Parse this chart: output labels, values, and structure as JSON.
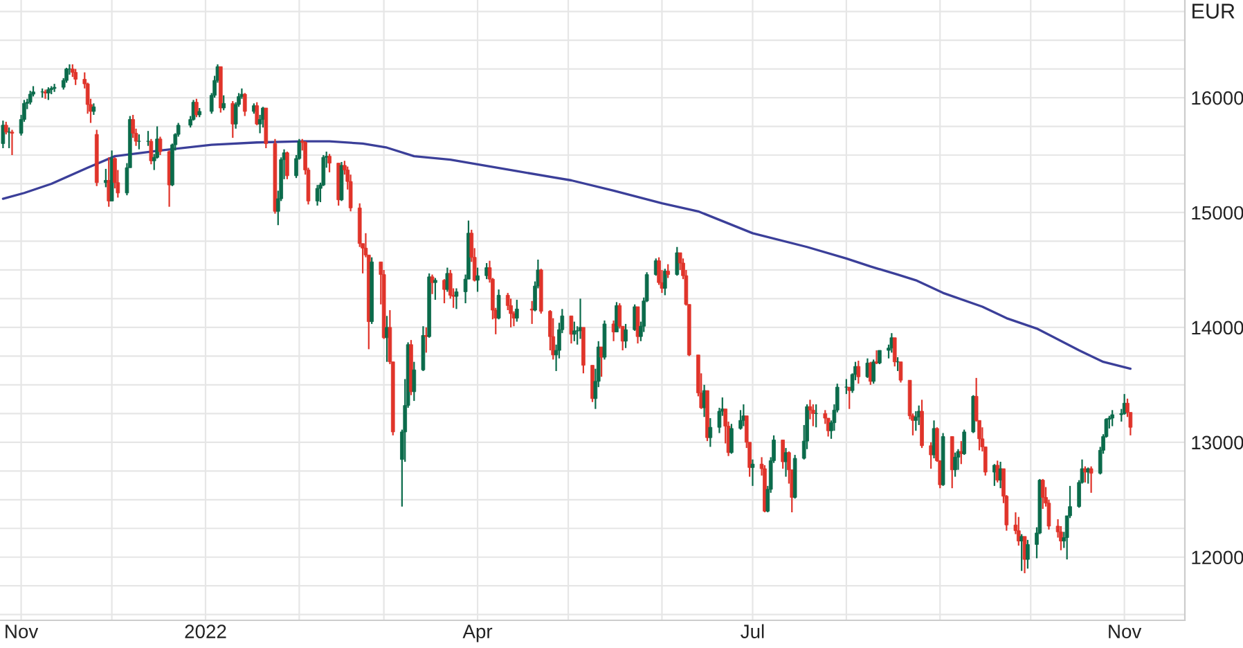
{
  "chart_data": {
    "type": "candlestick",
    "ylabel": "EUR",
    "x": [
      "2021-10-26",
      "2021-10-27",
      "2021-10-28",
      "2021-10-29",
      "2021-11-01",
      "2021-11-02",
      "2021-11-03",
      "2021-11-04",
      "2021-11-05",
      "2021-11-08",
      "2021-11-09",
      "2021-11-10",
      "2021-11-11",
      "2021-11-12",
      "2021-11-15",
      "2021-11-16",
      "2021-11-17",
      "2021-11-18",
      "2021-11-19",
      "2021-11-22",
      "2021-11-23",
      "2021-11-24",
      "2021-11-25",
      "2021-11-26",
      "2021-11-29",
      "2021-11-30",
      "2021-12-01",
      "2021-12-02",
      "2021-12-03",
      "2021-12-06",
      "2021-12-07",
      "2021-12-08",
      "2021-12-09",
      "2021-12-10",
      "2021-12-13",
      "2021-12-14",
      "2021-12-15",
      "2021-12-16",
      "2021-12-17",
      "2021-12-20",
      "2021-12-21",
      "2021-12-22",
      "2021-12-23",
      "2021-12-27",
      "2021-12-28",
      "2021-12-29",
      "2021-12-30",
      "2022-01-03",
      "2022-01-04",
      "2022-01-05",
      "2022-01-06",
      "2022-01-07",
      "2022-01-10",
      "2022-01-11",
      "2022-01-12",
      "2022-01-13",
      "2022-01-14",
      "2022-01-17",
      "2022-01-18",
      "2022-01-19",
      "2022-01-20",
      "2022-01-21",
      "2022-01-24",
      "2022-01-25",
      "2022-01-26",
      "2022-01-27",
      "2022-01-28",
      "2022-01-31",
      "2022-02-01",
      "2022-02-02",
      "2022-02-03",
      "2022-02-04",
      "2022-02-07",
      "2022-02-08",
      "2022-02-09",
      "2022-02-10",
      "2022-02-11",
      "2022-02-14",
      "2022-02-15",
      "2022-02-16",
      "2022-02-17",
      "2022-02-18",
      "2022-02-21",
      "2022-02-22",
      "2022-02-23",
      "2022-02-24",
      "2022-02-25",
      "2022-02-28",
      "2022-03-01",
      "2022-03-02",
      "2022-03-03",
      "2022-03-04",
      "2022-03-07",
      "2022-03-08",
      "2022-03-09",
      "2022-03-10",
      "2022-03-11",
      "2022-03-14",
      "2022-03-15",
      "2022-03-16",
      "2022-03-17",
      "2022-03-18",
      "2022-03-21",
      "2022-03-22",
      "2022-03-23",
      "2022-03-24",
      "2022-03-25",
      "2022-03-28",
      "2022-03-29",
      "2022-03-30",
      "2022-03-31",
      "2022-04-01",
      "2022-04-04",
      "2022-04-05",
      "2022-04-06",
      "2022-04-07",
      "2022-04-08",
      "2022-04-11",
      "2022-04-12",
      "2022-04-13",
      "2022-04-14",
      "2022-04-19",
      "2022-04-20",
      "2022-04-21",
      "2022-04-22",
      "2022-04-25",
      "2022-04-26",
      "2022-04-27",
      "2022-04-28",
      "2022-04-29",
      "2022-05-02",
      "2022-05-03",
      "2022-05-04",
      "2022-05-05",
      "2022-05-06",
      "2022-05-09",
      "2022-05-10",
      "2022-05-11",
      "2022-05-12",
      "2022-05-13",
      "2022-05-16",
      "2022-05-17",
      "2022-05-18",
      "2022-05-19",
      "2022-05-20",
      "2022-05-23",
      "2022-05-24",
      "2022-05-25",
      "2022-05-26",
      "2022-05-27",
      "2022-05-30",
      "2022-05-31",
      "2022-06-01",
      "2022-06-02",
      "2022-06-03",
      "2022-06-06",
      "2022-06-07",
      "2022-06-08",
      "2022-06-09",
      "2022-06-10",
      "2022-06-13",
      "2022-06-14",
      "2022-06-15",
      "2022-06-16",
      "2022-06-17",
      "2022-06-20",
      "2022-06-21",
      "2022-06-22",
      "2022-06-23",
      "2022-06-24",
      "2022-06-27",
      "2022-06-28",
      "2022-06-29",
      "2022-06-30",
      "2022-07-01",
      "2022-07-04",
      "2022-07-05",
      "2022-07-06",
      "2022-07-07",
      "2022-07-08",
      "2022-07-11",
      "2022-07-12",
      "2022-07-13",
      "2022-07-14",
      "2022-07-15",
      "2022-07-18",
      "2022-07-19",
      "2022-07-20",
      "2022-07-21",
      "2022-07-22",
      "2022-07-25",
      "2022-07-26",
      "2022-07-27",
      "2022-07-28",
      "2022-07-29",
      "2022-08-01",
      "2022-08-02",
      "2022-08-03",
      "2022-08-04",
      "2022-08-05",
      "2022-08-08",
      "2022-08-09",
      "2022-08-10",
      "2022-08-11",
      "2022-08-12",
      "2022-08-15",
      "2022-08-16",
      "2022-08-17",
      "2022-08-18",
      "2022-08-19",
      "2022-08-22",
      "2022-08-23",
      "2022-08-24",
      "2022-08-25",
      "2022-08-26",
      "2022-08-29",
      "2022-08-30",
      "2022-08-31",
      "2022-09-01",
      "2022-09-02",
      "2022-09-05",
      "2022-09-06",
      "2022-09-07",
      "2022-09-08",
      "2022-09-09",
      "2022-09-12",
      "2022-09-13",
      "2022-09-14",
      "2022-09-15",
      "2022-09-16",
      "2022-09-19",
      "2022-09-20",
      "2022-09-21",
      "2022-09-22",
      "2022-09-23",
      "2022-09-26",
      "2022-09-27",
      "2022-09-28",
      "2022-09-29",
      "2022-09-30",
      "2022-10-03",
      "2022-10-04",
      "2022-10-05",
      "2022-10-06",
      "2022-10-07",
      "2022-10-10",
      "2022-10-11",
      "2022-10-12",
      "2022-10-13",
      "2022-10-14",
      "2022-10-17",
      "2022-10-18",
      "2022-10-19",
      "2022-10-20",
      "2022-10-21",
      "2022-10-24",
      "2022-10-25",
      "2022-10-26",
      "2022-10-27",
      "2022-10-28",
      "2022-10-31",
      "2022-11-01",
      "2022-11-02",
      "2022-11-03"
    ],
    "ohlc": [
      [
        15600,
        15800,
        15560,
        15760
      ],
      [
        15760,
        15790,
        15680,
        15700
      ],
      [
        15700,
        15740,
        15560,
        15700
      ],
      [
        15700,
        15720,
        15500,
        15690
      ],
      [
        15690,
        15850,
        15670,
        15810
      ],
      [
        15810,
        15980,
        15790,
        15950
      ],
      [
        15950,
        15990,
        15900,
        15960
      ],
      [
        15960,
        16060,
        15940,
        16030
      ],
      [
        16030,
        16100,
        16010,
        16050
      ],
      [
        16050,
        16080,
        16000,
        16050
      ],
      [
        16050,
        16070,
        15990,
        16040
      ],
      [
        16040,
        16090,
        15980,
        16070
      ],
      [
        16070,
        16100,
        16030,
        16080
      ],
      [
        16080,
        16120,
        16050,
        16090
      ],
      [
        16090,
        16170,
        16070,
        16150
      ],
      [
        16150,
        16260,
        16130,
        16250
      ],
      [
        16250,
        16290,
        16200,
        16250
      ],
      [
        16250,
        16290,
        16180,
        16220
      ],
      [
        16220,
        16250,
        16110,
        16160
      ],
      [
        16160,
        16220,
        16080,
        16120
      ],
      [
        16120,
        16130,
        15860,
        15940
      ],
      [
        15940,
        15990,
        15780,
        15880
      ],
      [
        15880,
        15950,
        15850,
        15920
      ],
      [
        15680,
        15720,
        15230,
        15260
      ],
      [
        15260,
        15380,
        15220,
        15280
      ],
      [
        15280,
        15480,
        15050,
        15100
      ],
      [
        15100,
        15540,
        15100,
        15470
      ],
      [
        15470,
        15480,
        15210,
        15260
      ],
      [
        15260,
        15370,
        15130,
        15170
      ],
      [
        15170,
        15430,
        15150,
        15390
      ],
      [
        15390,
        15840,
        15390,
        15810
      ],
      [
        15810,
        15850,
        15650,
        15690
      ],
      [
        15690,
        15730,
        15580,
        15620
      ],
      [
        15620,
        15680,
        15550,
        15620
      ],
      [
        15620,
        15710,
        15580,
        15620
      ],
      [
        15620,
        15640,
        15420,
        15450
      ],
      [
        15450,
        15510,
        15370,
        15480
      ],
      [
        15480,
        15750,
        15470,
        15640
      ],
      [
        15640,
        15660,
        15500,
        15530
      ],
      [
        15530,
        15540,
        15050,
        15240
      ],
      [
        15240,
        15600,
        15230,
        15590
      ],
      [
        15590,
        15690,
        15540,
        15680
      ],
      [
        15680,
        15780,
        15660,
        15760
      ],
      [
        15760,
        15840,
        15740,
        15810
      ],
      [
        15810,
        15980,
        15800,
        15960
      ],
      [
        15960,
        15990,
        15830,
        15850
      ],
      [
        15850,
        15910,
        15830,
        15880
      ],
      [
        15880,
        16040,
        15860,
        16020
      ],
      [
        16020,
        16190,
        16000,
        16150
      ],
      [
        16150,
        16290,
        16130,
        16270
      ],
      [
        16270,
        16270,
        15870,
        15910
      ],
      [
        15910,
        16020,
        15890,
        15950
      ],
      [
        15950,
        15970,
        15650,
        15770
      ],
      [
        15770,
        15960,
        15730,
        15940
      ],
      [
        15940,
        16040,
        15920,
        16010
      ],
      [
        16010,
        16080,
        15990,
        16030
      ],
      [
        16030,
        16040,
        15840,
        15880
      ],
      [
        15880,
        15950,
        15860,
        15930
      ],
      [
        15930,
        15960,
        15760,
        15770
      ],
      [
        15770,
        15850,
        15690,
        15810
      ],
      [
        15810,
        15920,
        15740,
        15910
      ],
      [
        15910,
        15910,
        15560,
        15600
      ],
      [
        15600,
        15640,
        14990,
        15010
      ],
      [
        15010,
        15190,
        14890,
        15120
      ],
      [
        15120,
        15480,
        15100,
        15460
      ],
      [
        15460,
        15550,
        15290,
        15520
      ],
      [
        15520,
        15530,
        15290,
        15320
      ],
      [
        15320,
        15500,
        15300,
        15470
      ],
      [
        15470,
        15640,
        15460,
        15620
      ],
      [
        15620,
        15640,
        15540,
        15610
      ],
      [
        15610,
        15620,
        15330,
        15370
      ],
      [
        15370,
        15390,
        15070,
        15100
      ],
      [
        15100,
        15240,
        15060,
        15210
      ],
      [
        15210,
        15260,
        15090,
        15240
      ],
      [
        15240,
        15500,
        15230,
        15480
      ],
      [
        15480,
        15530,
        15390,
        15490
      ],
      [
        15490,
        15510,
        15350,
        15430
      ],
      [
        15430,
        15430,
        15060,
        15110
      ],
      [
        15110,
        15440,
        15100,
        15410
      ],
      [
        15410,
        15450,
        15330,
        15370
      ],
      [
        15370,
        15400,
        15200,
        15270
      ],
      [
        15270,
        15330,
        15010,
        15040
      ],
      [
        15040,
        15080,
        14700,
        14730
      ],
      [
        14730,
        14730,
        14470,
        14690
      ],
      [
        14690,
        14820,
        14610,
        14630
      ],
      [
        14630,
        14630,
        13810,
        14050
      ],
      [
        14050,
        14610,
        14030,
        14570
      ],
      [
        14570,
        14570,
        14200,
        14460
      ],
      [
        14460,
        14500,
        13900,
        13910
      ],
      [
        13910,
        14100,
        13700,
        14000
      ],
      [
        14000,
        14150,
        13680,
        13700
      ],
      [
        13700,
        13700,
        13060,
        13090
      ],
      [
        12850,
        13110,
        12440,
        13090
      ],
      [
        13090,
        13550,
        12830,
        13320
      ],
      [
        13320,
        13870,
        13300,
        13850
      ],
      [
        13850,
        13890,
        13410,
        13440
      ],
      [
        13440,
        13700,
        13360,
        13630
      ],
      [
        13630,
        14010,
        13620,
        13930
      ],
      [
        13930,
        14000,
        13780,
        13920
      ],
      [
        13920,
        14470,
        13910,
        14440
      ],
      [
        14440,
        14460,
        14290,
        14390
      ],
      [
        14390,
        14430,
        14240,
        14410
      ],
      [
        14410,
        14420,
        14210,
        14330
      ],
      [
        14330,
        14520,
        14310,
        14470
      ],
      [
        14470,
        14500,
        14250,
        14280
      ],
      [
        14280,
        14340,
        14170,
        14270
      ],
      [
        14270,
        14340,
        14160,
        14310
      ],
      [
        14310,
        14460,
        14210,
        14420
      ],
      [
        14420,
        14930,
        14420,
        14820
      ],
      [
        14820,
        14850,
        14570,
        14610
      ],
      [
        14610,
        14690,
        14400,
        14410
      ],
      [
        14410,
        14520,
        14310,
        14450
      ],
      [
        14450,
        14560,
        14420,
        14520
      ],
      [
        14520,
        14580,
        14390,
        14420
      ],
      [
        14420,
        14430,
        14070,
        14150
      ],
      [
        14150,
        14170,
        13940,
        14080
      ],
      [
        14080,
        14330,
        14070,
        14280
      ],
      [
        14280,
        14300,
        14150,
        14190
      ],
      [
        14190,
        14250,
        14000,
        14120
      ],
      [
        14120,
        14140,
        14010,
        14080
      ],
      [
        14080,
        14240,
        14050,
        14160
      ],
      [
        14160,
        14230,
        14030,
        14150
      ],
      [
        14150,
        14400,
        14140,
        14360
      ],
      [
        14360,
        14590,
        14340,
        14500
      ],
      [
        14500,
        14510,
        14120,
        14140
      ],
      [
        14140,
        14150,
        13800,
        13920
      ],
      [
        13920,
        14080,
        13720,
        13760
      ],
      [
        13760,
        13850,
        13620,
        13800
      ],
      [
        13800,
        14040,
        13730,
        13980
      ],
      [
        13980,
        14160,
        13950,
        14100
      ],
      [
        14100,
        14100,
        13860,
        13940
      ],
      [
        13940,
        14050,
        13880,
        13970
      ],
      [
        13970,
        14010,
        13850,
        13970
      ],
      [
        13970,
        14250,
        13900,
        14000
      ],
      [
        14000,
        14000,
        13600,
        13670
      ],
      [
        13670,
        13670,
        13350,
        13380
      ],
      [
        13380,
        13640,
        13290,
        13530
      ],
      [
        13530,
        13880,
        13480,
        13830
      ],
      [
        13830,
        13830,
        13570,
        13740
      ],
      [
        13740,
        14060,
        13720,
        14030
      ],
      [
        14030,
        14060,
        13880,
        13960
      ],
      [
        13960,
        14220,
        13960,
        14190
      ],
      [
        14190,
        14210,
        13990,
        14010
      ],
      [
        14010,
        14010,
        13800,
        13880
      ],
      [
        13880,
        14030,
        13820,
        13980
      ],
      [
        13980,
        14200,
        13970,
        14180
      ],
      [
        14180,
        14180,
        13860,
        13920
      ],
      [
        13920,
        14050,
        13880,
        14010
      ],
      [
        14010,
        14260,
        13960,
        14230
      ],
      [
        14230,
        14480,
        14220,
        14460
      ],
      [
        14460,
        14600,
        14450,
        14580
      ],
      [
        14580,
        14610,
        14370,
        14390
      ],
      [
        14390,
        14500,
        14300,
        14340
      ],
      [
        14340,
        14510,
        14280,
        14490
      ],
      [
        14490,
        14550,
        14430,
        14460
      ],
      [
        14460,
        14700,
        14450,
        14650
      ],
      [
        14650,
        14650,
        14500,
        14560
      ],
      [
        14560,
        14600,
        14420,
        14450
      ],
      [
        14450,
        14500,
        14190,
        14200
      ],
      [
        14200,
        14200,
        13750,
        13760
      ],
      [
        13760,
        13760,
        13400,
        13430
      ],
      [
        13430,
        13600,
        13290,
        13300
      ],
      [
        13300,
        13500,
        13220,
        13450
      ],
      [
        13450,
        13450,
        13010,
        13040
      ],
      [
        13040,
        13210,
        12960,
        13130
      ],
      [
        13130,
        13300,
        13080,
        13270
      ],
      [
        13270,
        13390,
        13230,
        13290
      ],
      [
        13290,
        13290,
        12990,
        13140
      ],
      [
        13140,
        13180,
        12880,
        12910
      ],
      [
        12910,
        13160,
        12900,
        13120
      ],
      [
        13120,
        13280,
        13110,
        13190
      ],
      [
        13190,
        13330,
        13140,
        13230
      ],
      [
        13230,
        13230,
        12950,
        13000
      ],
      [
        13000,
        13000,
        12700,
        12780
      ],
      [
        12780,
        12850,
        12620,
        12810
      ],
      [
        12810,
        12870,
        12710,
        12770
      ],
      [
        12770,
        12800,
        12390,
        12400
      ],
      [
        12400,
        12620,
        12390,
        12590
      ],
      [
        12590,
        12870,
        12560,
        12840
      ],
      [
        12840,
        13060,
        12820,
        13020
      ],
      [
        13020,
        13020,
        12770,
        12830
      ],
      [
        12830,
        12950,
        12700,
        12910
      ],
      [
        12910,
        12920,
        12640,
        12760
      ],
      [
        12760,
        12760,
        12390,
        12520
      ],
      [
        12520,
        12890,
        12510,
        12860
      ],
      [
        12860,
        13150,
        12850,
        13010
      ],
      [
        13010,
        13330,
        12940,
        13310
      ],
      [
        13310,
        13370,
        13200,
        13280
      ],
      [
        13280,
        13330,
        13140,
        13250
      ],
      [
        13250,
        13330,
        13130,
        13250
      ],
      [
        13250,
        13280,
        13160,
        13210
      ],
      [
        13210,
        13210,
        13050,
        13100
      ],
      [
        13100,
        13190,
        13030,
        13170
      ],
      [
        13170,
        13330,
        13100,
        13280
      ],
      [
        13280,
        13510,
        13260,
        13480
      ],
      [
        13480,
        13550,
        13420,
        13480
      ],
      [
        13480,
        13480,
        13290,
        13450
      ],
      [
        13450,
        13600,
        13430,
        13590
      ],
      [
        13590,
        13700,
        13540,
        13660
      ],
      [
        13660,
        13710,
        13510,
        13570
      ],
      [
        13570,
        13730,
        13560,
        13690
      ],
      [
        13690,
        13700,
        13500,
        13530
      ],
      [
        13530,
        13720,
        13510,
        13700
      ],
      [
        13700,
        13800,
        13680,
        13690
      ],
      [
        13690,
        13800,
        13680,
        13800
      ],
      [
        13800,
        13850,
        13730,
        13820
      ],
      [
        13820,
        13950,
        13780,
        13910
      ],
      [
        13910,
        13910,
        13660,
        13700
      ],
      [
        13700,
        13740,
        13620,
        13700
      ],
      [
        13700,
        13700,
        13520,
        13540
      ],
      [
        13540,
        13540,
        13200,
        13230
      ],
      [
        13230,
        13250,
        13060,
        13190
      ],
      [
        13190,
        13270,
        13100,
        13220
      ],
      [
        13220,
        13320,
        13150,
        13270
      ],
      [
        13270,
        13370,
        12950,
        12970
      ],
      [
        12970,
        13000,
        12770,
        12890
      ],
      [
        12890,
        13190,
        12860,
        13120
      ],
      [
        13120,
        13130,
        12830,
        12840
      ],
      [
        12840,
        12840,
        12600,
        12630
      ],
      [
        12630,
        13080,
        12620,
        13050
      ],
      [
        13050,
        13050,
        12600,
        12760
      ],
      [
        12760,
        12910,
        12700,
        12870
      ],
      [
        12870,
        12940,
        12760,
        12920
      ],
      [
        12920,
        13010,
        12810,
        12900
      ],
      [
        12900,
        13110,
        12890,
        13090
      ],
      [
        13090,
        13410,
        13080,
        13400
      ],
      [
        13400,
        13560,
        13180,
        13190
      ],
      [
        13190,
        13190,
        12930,
        13030
      ],
      [
        13030,
        13130,
        12920,
        12960
      ],
      [
        12960,
        12960,
        12710,
        12740
      ],
      [
        12740,
        12810,
        12620,
        12800
      ],
      [
        12800,
        12840,
        12650,
        12670
      ],
      [
        12670,
        12830,
        12600,
        12770
      ],
      [
        12770,
        12770,
        12470,
        12530
      ],
      [
        12530,
        12540,
        12230,
        12280
      ],
      [
        12280,
        12390,
        12200,
        12230
      ],
      [
        12230,
        12350,
        12100,
        12140
      ],
      [
        12140,
        12200,
        11880,
        12180
      ],
      [
        12180,
        12180,
        11860,
        11980
      ],
      [
        11980,
        12150,
        11900,
        12110
      ],
      [
        12110,
        12260,
        11990,
        12210
      ],
      [
        12210,
        12680,
        12200,
        12670
      ],
      [
        12670,
        12680,
        12420,
        12520
      ],
      [
        12520,
        12610,
        12440,
        12470
      ],
      [
        12470,
        12500,
        12240,
        12270
      ],
      [
        12270,
        12330,
        12170,
        12220
      ],
      [
        12220,
        12270,
        12060,
        12140
      ],
      [
        12140,
        12220,
        12080,
        12170
      ],
      [
        12170,
        12360,
        11980,
        12360
      ],
      [
        12360,
        12620,
        12340,
        12440
      ],
      [
        12440,
        12670,
        12430,
        12650
      ],
      [
        12650,
        12850,
        12640,
        12770
      ],
      [
        12770,
        12790,
        12650,
        12740
      ],
      [
        12740,
        12780,
        12640,
        12770
      ],
      [
        12770,
        12790,
        12560,
        12730
      ],
      [
        12730,
        12960,
        12720,
        12930
      ],
      [
        12930,
        13070,
        12900,
        13050
      ],
      [
        13050,
        13210,
        13040,
        13200
      ],
      [
        13200,
        13230,
        13120,
        13210
      ],
      [
        13210,
        13280,
        13140,
        13240
      ],
      [
        13240,
        13290,
        13180,
        13250
      ],
      [
        13250,
        13420,
        13240,
        13340
      ],
      [
        13340,
        13380,
        13220,
        13260
      ],
      [
        13260,
        13260,
        13060,
        13130
      ]
    ],
    "colors": [
      "#0b6b4b",
      "#e0342a",
      "#0b6b4b",
      "#e0342a",
      "#0b6b4b",
      "#0b6b4b",
      "#0b6b4b",
      "#0b6b4b",
      "#0b6b4b",
      "#0b6b4b",
      "#e0342a",
      "#0b6b4b",
      "#0b6b4b",
      "#0b6b4b",
      "#0b6b4b",
      "#0b6b4b",
      "#0b6b4b",
      "#e0342a",
      "#e0342a",
      "#e0342a",
      "#e0342a",
      "#e0342a",
      "#0b6b4b",
      "#e0342a",
      "#0b6b4b",
      "#e0342a",
      "#0b6b4b",
      "#e0342a",
      "#e0342a",
      "#0b6b4b",
      "#0b6b4b",
      "#e0342a",
      "#e0342a",
      "#0b6b4b",
      "#0b6b4b",
      "#e0342a",
      "#0b6b4b",
      "#0b6b4b",
      "#e0342a",
      "#e0342a",
      "#0b6b4b",
      "#0b6b4b",
      "#0b6b4b",
      "#0b6b4b",
      "#0b6b4b",
      "#e0342a",
      "#0b6b4b",
      "#0b6b4b",
      "#0b6b4b",
      "#0b6b4b",
      "#e0342a",
      "#0b6b4b",
      "#e0342a",
      "#0b6b4b",
      "#0b6b4b",
      "#0b6b4b",
      "#e0342a",
      "#0b6b4b",
      "#e0342a",
      "#0b6b4b",
      "#0b6b4b",
      "#e0342a",
      "#e0342a",
      "#0b6b4b",
      "#0b6b4b",
      "#0b6b4b",
      "#e0342a",
      "#0b6b4b",
      "#0b6b4b",
      "#e0342a",
      "#e0342a",
      "#e0342a",
      "#0b6b4b",
      "#0b6b4b",
      "#0b6b4b",
      "#0b6b4b",
      "#e0342a",
      "#e0342a",
      "#0b6b4b",
      "#e0342a",
      "#e0342a",
      "#e0342a",
      "#e0342a",
      "#e0342a",
      "#e0342a",
      "#e0342a",
      "#0b6b4b",
      "#e0342a",
      "#e0342a",
      "#0b6b4b",
      "#e0342a",
      "#e0342a",
      "#0b6b4b",
      "#0b6b4b",
      "#0b6b4b",
      "#e0342a",
      "#0b6b4b",
      "#0b6b4b",
      "#e0342a",
      "#0b6b4b",
      "#e0342a",
      "#0b6b4b",
      "#e0342a",
      "#0b6b4b",
      "#e0342a",
      "#e0342a",
      "#0b6b4b",
      "#0b6b4b",
      "#0b6b4b",
      "#e0342a",
      "#e0342a",
      "#0b6b4b",
      "#0b6b4b",
      "#e0342a",
      "#e0342a",
      "#e0342a",
      "#0b6b4b",
      "#e0342a",
      "#e0342a",
      "#e0342a",
      "#0b6b4b",
      "#e0342a",
      "#0b6b4b",
      "#0b6b4b",
      "#e0342a",
      "#e0342a",
      "#e0342a",
      "#0b6b4b",
      "#0b6b4b",
      "#0b6b4b",
      "#e0342a",
      "#0b6b4b",
      "#0b6b4b",
      "#0b6b4b",
      "#e0342a",
      "#e0342a",
      "#0b6b4b",
      "#0b6b4b",
      "#e0342a",
      "#0b6b4b",
      "#e0342a",
      "#0b6b4b",
      "#e0342a",
      "#e0342a",
      "#0b6b4b",
      "#0b6b4b",
      "#e0342a",
      "#0b6b4b",
      "#0b6b4b",
      "#0b6b4b",
      "#0b6b4b",
      "#e0342a",
      "#e0342a",
      "#0b6b4b",
      "#e0342a",
      "#0b6b4b",
      "#e0342a",
      "#e0342a",
      "#e0342a",
      "#e0342a",
      "#e0342a",
      "#e0342a",
      "#0b6b4b",
      "#e0342a",
      "#0b6b4b",
      "#0b6b4b",
      "#0b6b4b",
      "#e0342a",
      "#e0342a",
      "#0b6b4b",
      "#0b6b4b",
      "#0b6b4b",
      "#e0342a",
      "#e0342a",
      "#0b6b4b",
      "#e0342a",
      "#e0342a",
      "#0b6b4b",
      "#0b6b4b",
      "#0b6b4b",
      "#e0342a",
      "#0b6b4b",
      "#e0342a",
      "#e0342a",
      "#0b6b4b",
      "#0b6b4b",
      "#0b6b4b",
      "#e0342a",
      "#e0342a",
      "#0b6b4b",
      "#e0342a",
      "#e0342a",
      "#0b6b4b",
      "#0b6b4b",
      "#0b6b4b",
      "#0b6b4b",
      "#e0342a",
      "#0b6b4b",
      "#0b6b4b",
      "#e0342a",
      "#0b6b4b",
      "#e0342a",
      "#0b6b4b",
      "#e0342a",
      "#0b6b4b",
      "#0b6b4b",
      "#0b6b4b",
      "#e0342a",
      "#0b6b4b",
      "#e0342a",
      "#e0342a",
      "#e0342a",
      "#0b6b4b",
      "#0b6b4b",
      "#e0342a",
      "#e0342a",
      "#0b6b4b",
      "#e0342a",
      "#e0342a",
      "#0b6b4b",
      "#e0342a",
      "#0b6b4b",
      "#0b6b4b",
      "#e0342a",
      "#0b6b4b",
      "#0b6b4b",
      "#e0342a",
      "#e0342a",
      "#e0342a",
      "#e0342a",
      "#0b6b4b",
      "#e0342a",
      "#0b6b4b",
      "#e0342a",
      "#e0342a",
      "#e0342a",
      "#e0342a",
      "#0b6b4b",
      "#e0342a",
      "#0b6b4b",
      "#0b6b4b",
      "#0b6b4b",
      "#e0342a",
      "#e0342a",
      "#e0342a",
      "#e0342a",
      "#e0342a",
      "#0b6b4b",
      "#0b6b4b",
      "#0b6b4b",
      "#0b6b4b",
      "#0b6b4b",
      "#e0342a",
      "#0b6b4b",
      "#e0342a",
      "#0b6b4b",
      "#0b6b4b",
      "#0b6b4b",
      "#0b6b4b",
      "#0b6b4b",
      "#0b6b4b",
      "#0b6b4b",
      "#e0342a",
      "#e0342a"
    ],
    "series": [
      {
        "type": "line",
        "color": "#3b3f99",
        "x": [
          "2021-10-26",
          "2021-11-02",
          "2021-11-11",
          "2021-11-23",
          "2021-12-02",
          "2021-12-17",
          "2022-01-03",
          "2022-01-18",
          "2022-02-02",
          "2022-02-11",
          "2022-02-22",
          "2022-03-02",
          "2022-03-11",
          "2022-03-23",
          "2022-04-01",
          "2022-04-14",
          "2022-05-02",
          "2022-05-16",
          "2022-06-01",
          "2022-06-13",
          "2022-07-01",
          "2022-07-19",
          "2022-08-01",
          "2022-08-09",
          "2022-08-18",
          "2022-08-24",
          "2022-09-02",
          "2022-09-15",
          "2022-09-23",
          "2022-10-03",
          "2022-10-17",
          "2022-10-25",
          "2022-11-03"
        ],
        "values": [
          15120,
          15170,
          15250,
          15390,
          15490,
          15540,
          15590,
          15610,
          15620,
          15620,
          15600,
          15565,
          15490,
          15460,
          15420,
          15360,
          15280,
          15190,
          15080,
          15010,
          14820,
          14700,
          14600,
          14530,
          14460,
          14410,
          14300,
          14180,
          14080,
          13990,
          13800,
          13700,
          13640
        ]
      }
    ],
    "xlim": [
      "2021-10-25",
      "2022-11-21"
    ],
    "xticks": [
      {
        "value": "2021-11-01",
        "label": "Nov"
      },
      {
        "value": "2021-12-01",
        "label": null
      },
      {
        "value": "2022-01-01",
        "label": "2022"
      },
      {
        "value": "2022-02-01",
        "label": null
      },
      {
        "value": "2022-03-01",
        "label": null
      },
      {
        "value": "2022-04-01",
        "label": "Apr"
      },
      {
        "value": "2022-05-01",
        "label": null
      },
      {
        "value": "2022-06-01",
        "label": null
      },
      {
        "value": "2022-07-01",
        "label": "Jul"
      },
      {
        "value": "2022-08-01",
        "label": null
      },
      {
        "value": "2022-09-01",
        "label": null
      },
      {
        "value": "2022-10-01",
        "label": null
      },
      {
        "value": "2022-11-01",
        "label": "Nov"
      }
    ],
    "ylim": [
      11450,
      16850
    ],
    "yticks": [
      {
        "value": 11500,
        "label": null
      },
      {
        "value": 11750,
        "label": null
      },
      12000,
      {
        "value": 12250,
        "label": null
      },
      {
        "value": 12500,
        "label": null
      },
      {
        "value": 12750,
        "label": null
      },
      13000,
      {
        "value": 13250,
        "label": null
      },
      {
        "value": 13500,
        "label": null
      },
      {
        "value": 13750,
        "label": null
      },
      14000,
      {
        "value": 14250,
        "label": null
      },
      {
        "value": 14500,
        "label": null
      },
      {
        "value": 14750,
        "label": null
      },
      15000,
      {
        "value": 15250,
        "label": null
      },
      {
        "value": 15500,
        "label": null
      },
      {
        "value": 15750,
        "label": null
      },
      16000,
      {
        "value": 16250,
        "label": null
      },
      {
        "value": 16500,
        "label": null
      },
      {
        "value": 16750,
        "label": null
      }
    ],
    "grid": true
  }
}
